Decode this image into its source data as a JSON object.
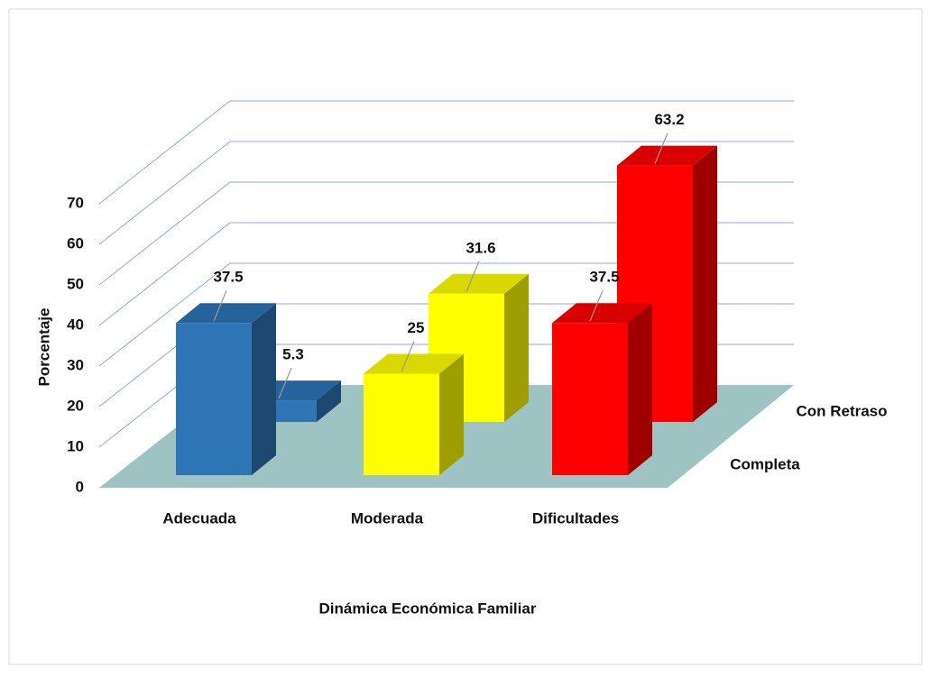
{
  "chart_data": {
    "type": "bar3d",
    "y_label": "Porcentaje",
    "x_label": "Dinámica Económica Familiar",
    "categories": [
      "Adecuada",
      "Moderada",
      "Dificultades"
    ],
    "colors": [
      "#2e75b6",
      "#ffff00",
      "#ff0000"
    ],
    "series": [
      {
        "name": "Completa",
        "values": [
          37.5,
          25,
          37.5
        ]
      },
      {
        "name": "Con Retraso",
        "values": [
          5.3,
          31.6,
          63.2
        ]
      }
    ],
    "ylim": [
      0,
      70
    ],
    "yticks": [
      0,
      10,
      20,
      30,
      40,
      50,
      60,
      70
    ],
    "grid": true
  }
}
